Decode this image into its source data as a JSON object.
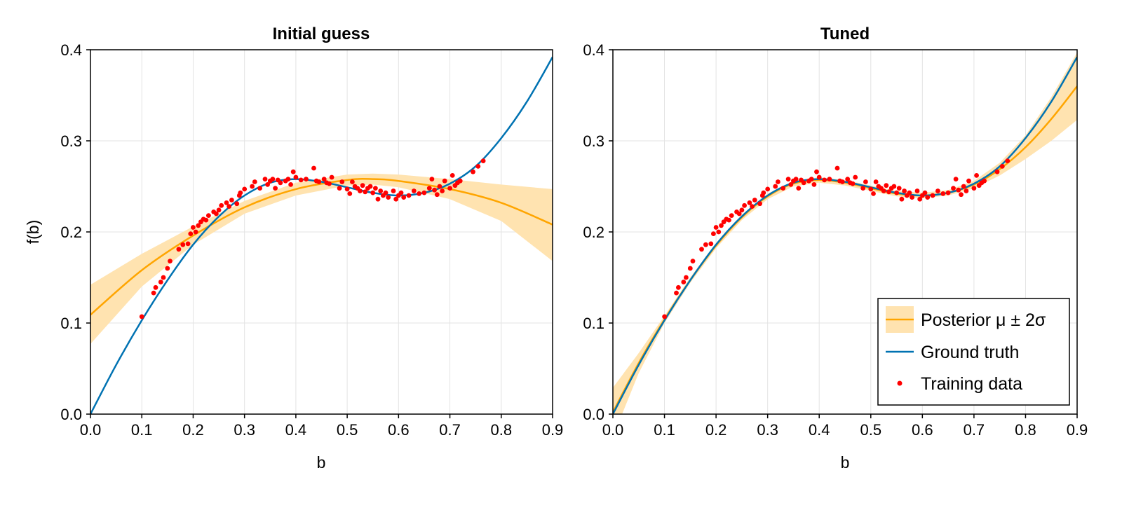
{
  "colors": {
    "posterior": "#FFA500",
    "band": "#FFE3B0",
    "truth": "#0072B2",
    "data": "#FF0000",
    "grid": "#E3E3E3"
  },
  "legend": {
    "posterior": "Posterior μ ± 2σ",
    "truth": "Ground truth",
    "data": "Training data",
    "placement": "bottom-right of right panel"
  },
  "chart_data": [
    {
      "type": "line",
      "title": "Initial guess",
      "xlabel": "b",
      "ylabel": "f(b)",
      "xlim": [
        0.0,
        0.9
      ],
      "ylim": [
        0.0,
        0.4
      ],
      "xticks": [
        "0.0",
        "0.1",
        "0.2",
        "0.3",
        "0.4",
        "0.5",
        "0.6",
        "0.7",
        "0.8",
        "0.9"
      ],
      "yticks": [
        "0.0",
        "0.1",
        "0.2",
        "0.3",
        "0.4"
      ],
      "grid": true,
      "series": [
        {
          "name": "Ground truth",
          "x": [
            0.0,
            0.05,
            0.1,
            0.15,
            0.2,
            0.25,
            0.3,
            0.35,
            0.4,
            0.45,
            0.5,
            0.55,
            0.6,
            0.65,
            0.7,
            0.75,
            0.8,
            0.85,
            0.9
          ],
          "y": [
            0.0,
            0.054,
            0.103,
            0.147,
            0.186,
            0.217,
            0.24,
            0.254,
            0.258,
            0.255,
            0.249,
            0.243,
            0.24,
            0.243,
            0.253,
            0.272,
            0.303,
            0.343,
            0.392
          ]
        },
        {
          "name": "Posterior μ ± 2σ",
          "x": [
            0.0,
            0.1,
            0.2,
            0.3,
            0.4,
            0.5,
            0.55,
            0.6,
            0.7,
            0.8,
            0.9
          ],
          "y": [
            0.109,
            0.158,
            0.196,
            0.227,
            0.247,
            0.257,
            0.258,
            0.256,
            0.247,
            0.232,
            0.208
          ],
          "lower": [
            0.077,
            0.14,
            0.186,
            0.22,
            0.24,
            0.251,
            0.252,
            0.249,
            0.236,
            0.212,
            0.168
          ],
          "upper": [
            0.142,
            0.176,
            0.206,
            0.234,
            0.254,
            0.263,
            0.264,
            0.263,
            0.258,
            0.252,
            0.247
          ]
        }
      ]
    },
    {
      "type": "line",
      "title": "Tuned",
      "xlabel": "b",
      "ylabel": "",
      "xlim": [
        0.0,
        0.9
      ],
      "ylim": [
        0.0,
        0.4
      ],
      "xticks": [
        "0.0",
        "0.1",
        "0.2",
        "0.3",
        "0.4",
        "0.5",
        "0.6",
        "0.7",
        "0.8",
        "0.9"
      ],
      "yticks": [
        "0.0",
        "0.1",
        "0.2",
        "0.3",
        "0.4"
      ],
      "grid": true,
      "series": [
        {
          "name": "Ground truth",
          "x": [
            0.0,
            0.05,
            0.1,
            0.15,
            0.2,
            0.25,
            0.3,
            0.35,
            0.4,
            0.45,
            0.5,
            0.55,
            0.6,
            0.65,
            0.7,
            0.75,
            0.8,
            0.85,
            0.9
          ],
          "y": [
            0.0,
            0.054,
            0.103,
            0.147,
            0.186,
            0.217,
            0.24,
            0.254,
            0.258,
            0.255,
            0.249,
            0.243,
            0.24,
            0.243,
            0.253,
            0.272,
            0.303,
            0.343,
            0.392
          ]
        },
        {
          "name": "Posterior μ ± 2σ",
          "x": [
            0.0,
            0.05,
            0.1,
            0.15,
            0.2,
            0.25,
            0.3,
            0.35,
            0.4,
            0.45,
            0.5,
            0.55,
            0.6,
            0.65,
            0.7,
            0.75,
            0.8,
            0.85,
            0.9
          ],
          "y": [
            0.002,
            0.056,
            0.104,
            0.147,
            0.185,
            0.216,
            0.239,
            0.253,
            0.257,
            0.254,
            0.248,
            0.242,
            0.24,
            0.243,
            0.252,
            0.269,
            0.293,
            0.324,
            0.36
          ],
          "lower": [
            -0.025,
            0.045,
            0.1,
            0.144,
            0.182,
            0.213,
            0.236,
            0.25,
            0.254,
            0.251,
            0.245,
            0.239,
            0.237,
            0.24,
            0.248,
            0.262,
            0.28,
            0.3,
            0.323
          ],
          "upper": [
            0.029,
            0.067,
            0.108,
            0.15,
            0.188,
            0.219,
            0.242,
            0.256,
            0.26,
            0.257,
            0.251,
            0.245,
            0.243,
            0.246,
            0.256,
            0.276,
            0.306,
            0.348,
            0.397
          ]
        }
      ]
    }
  ],
  "training_data": {
    "name": "Training data",
    "x": [
      0.1,
      0.123,
      0.127,
      0.137,
      0.142,
      0.15,
      0.155,
      0.172,
      0.18,
      0.19,
      0.195,
      0.2,
      0.205,
      0.21,
      0.215,
      0.22,
      0.225,
      0.23,
      0.24,
      0.245,
      0.25,
      0.255,
      0.265,
      0.27,
      0.275,
      0.285,
      0.29,
      0.292,
      0.3,
      0.315,
      0.32,
      0.33,
      0.34,
      0.345,
      0.35,
      0.355,
      0.36,
      0.365,
      0.37,
      0.38,
      0.385,
      0.39,
      0.395,
      0.4,
      0.41,
      0.42,
      0.435,
      0.44,
      0.445,
      0.455,
      0.46,
      0.465,
      0.47,
      0.485,
      0.49,
      0.5,
      0.505,
      0.51,
      0.515,
      0.52,
      0.525,
      0.53,
      0.535,
      0.54,
      0.545,
      0.55,
      0.555,
      0.56,
      0.565,
      0.57,
      0.575,
      0.58,
      0.59,
      0.595,
      0.6,
      0.605,
      0.61,
      0.62,
      0.63,
      0.64,
      0.65,
      0.66,
      0.665,
      0.67,
      0.675,
      0.68,
      0.685,
      0.69,
      0.7,
      0.705,
      0.71,
      0.715,
      0.72,
      0.745,
      0.755,
      0.765
    ],
    "y": [
      0.107,
      0.133,
      0.139,
      0.145,
      0.15,
      0.16,
      0.168,
      0.181,
      0.186,
      0.187,
      0.198,
      0.205,
      0.2,
      0.207,
      0.211,
      0.214,
      0.213,
      0.218,
      0.222,
      0.22,
      0.224,
      0.229,
      0.232,
      0.228,
      0.235,
      0.231,
      0.24,
      0.243,
      0.247,
      0.25,
      0.255,
      0.248,
      0.258,
      0.252,
      0.256,
      0.258,
      0.248,
      0.257,
      0.254,
      0.256,
      0.258,
      0.252,
      0.266,
      0.26,
      0.257,
      0.258,
      0.27,
      0.256,
      0.255,
      0.258,
      0.254,
      0.253,
      0.26,
      0.248,
      0.255,
      0.247,
      0.242,
      0.255,
      0.25,
      0.248,
      0.245,
      0.251,
      0.244,
      0.248,
      0.25,
      0.243,
      0.248,
      0.236,
      0.245,
      0.24,
      0.243,
      0.238,
      0.245,
      0.236,
      0.24,
      0.243,
      0.238,
      0.24,
      0.245,
      0.242,
      0.243,
      0.248,
      0.258,
      0.246,
      0.241,
      0.25,
      0.245,
      0.256,
      0.248,
      0.262,
      0.251,
      0.254,
      0.256,
      0.266,
      0.272,
      0.278
    ]
  }
}
